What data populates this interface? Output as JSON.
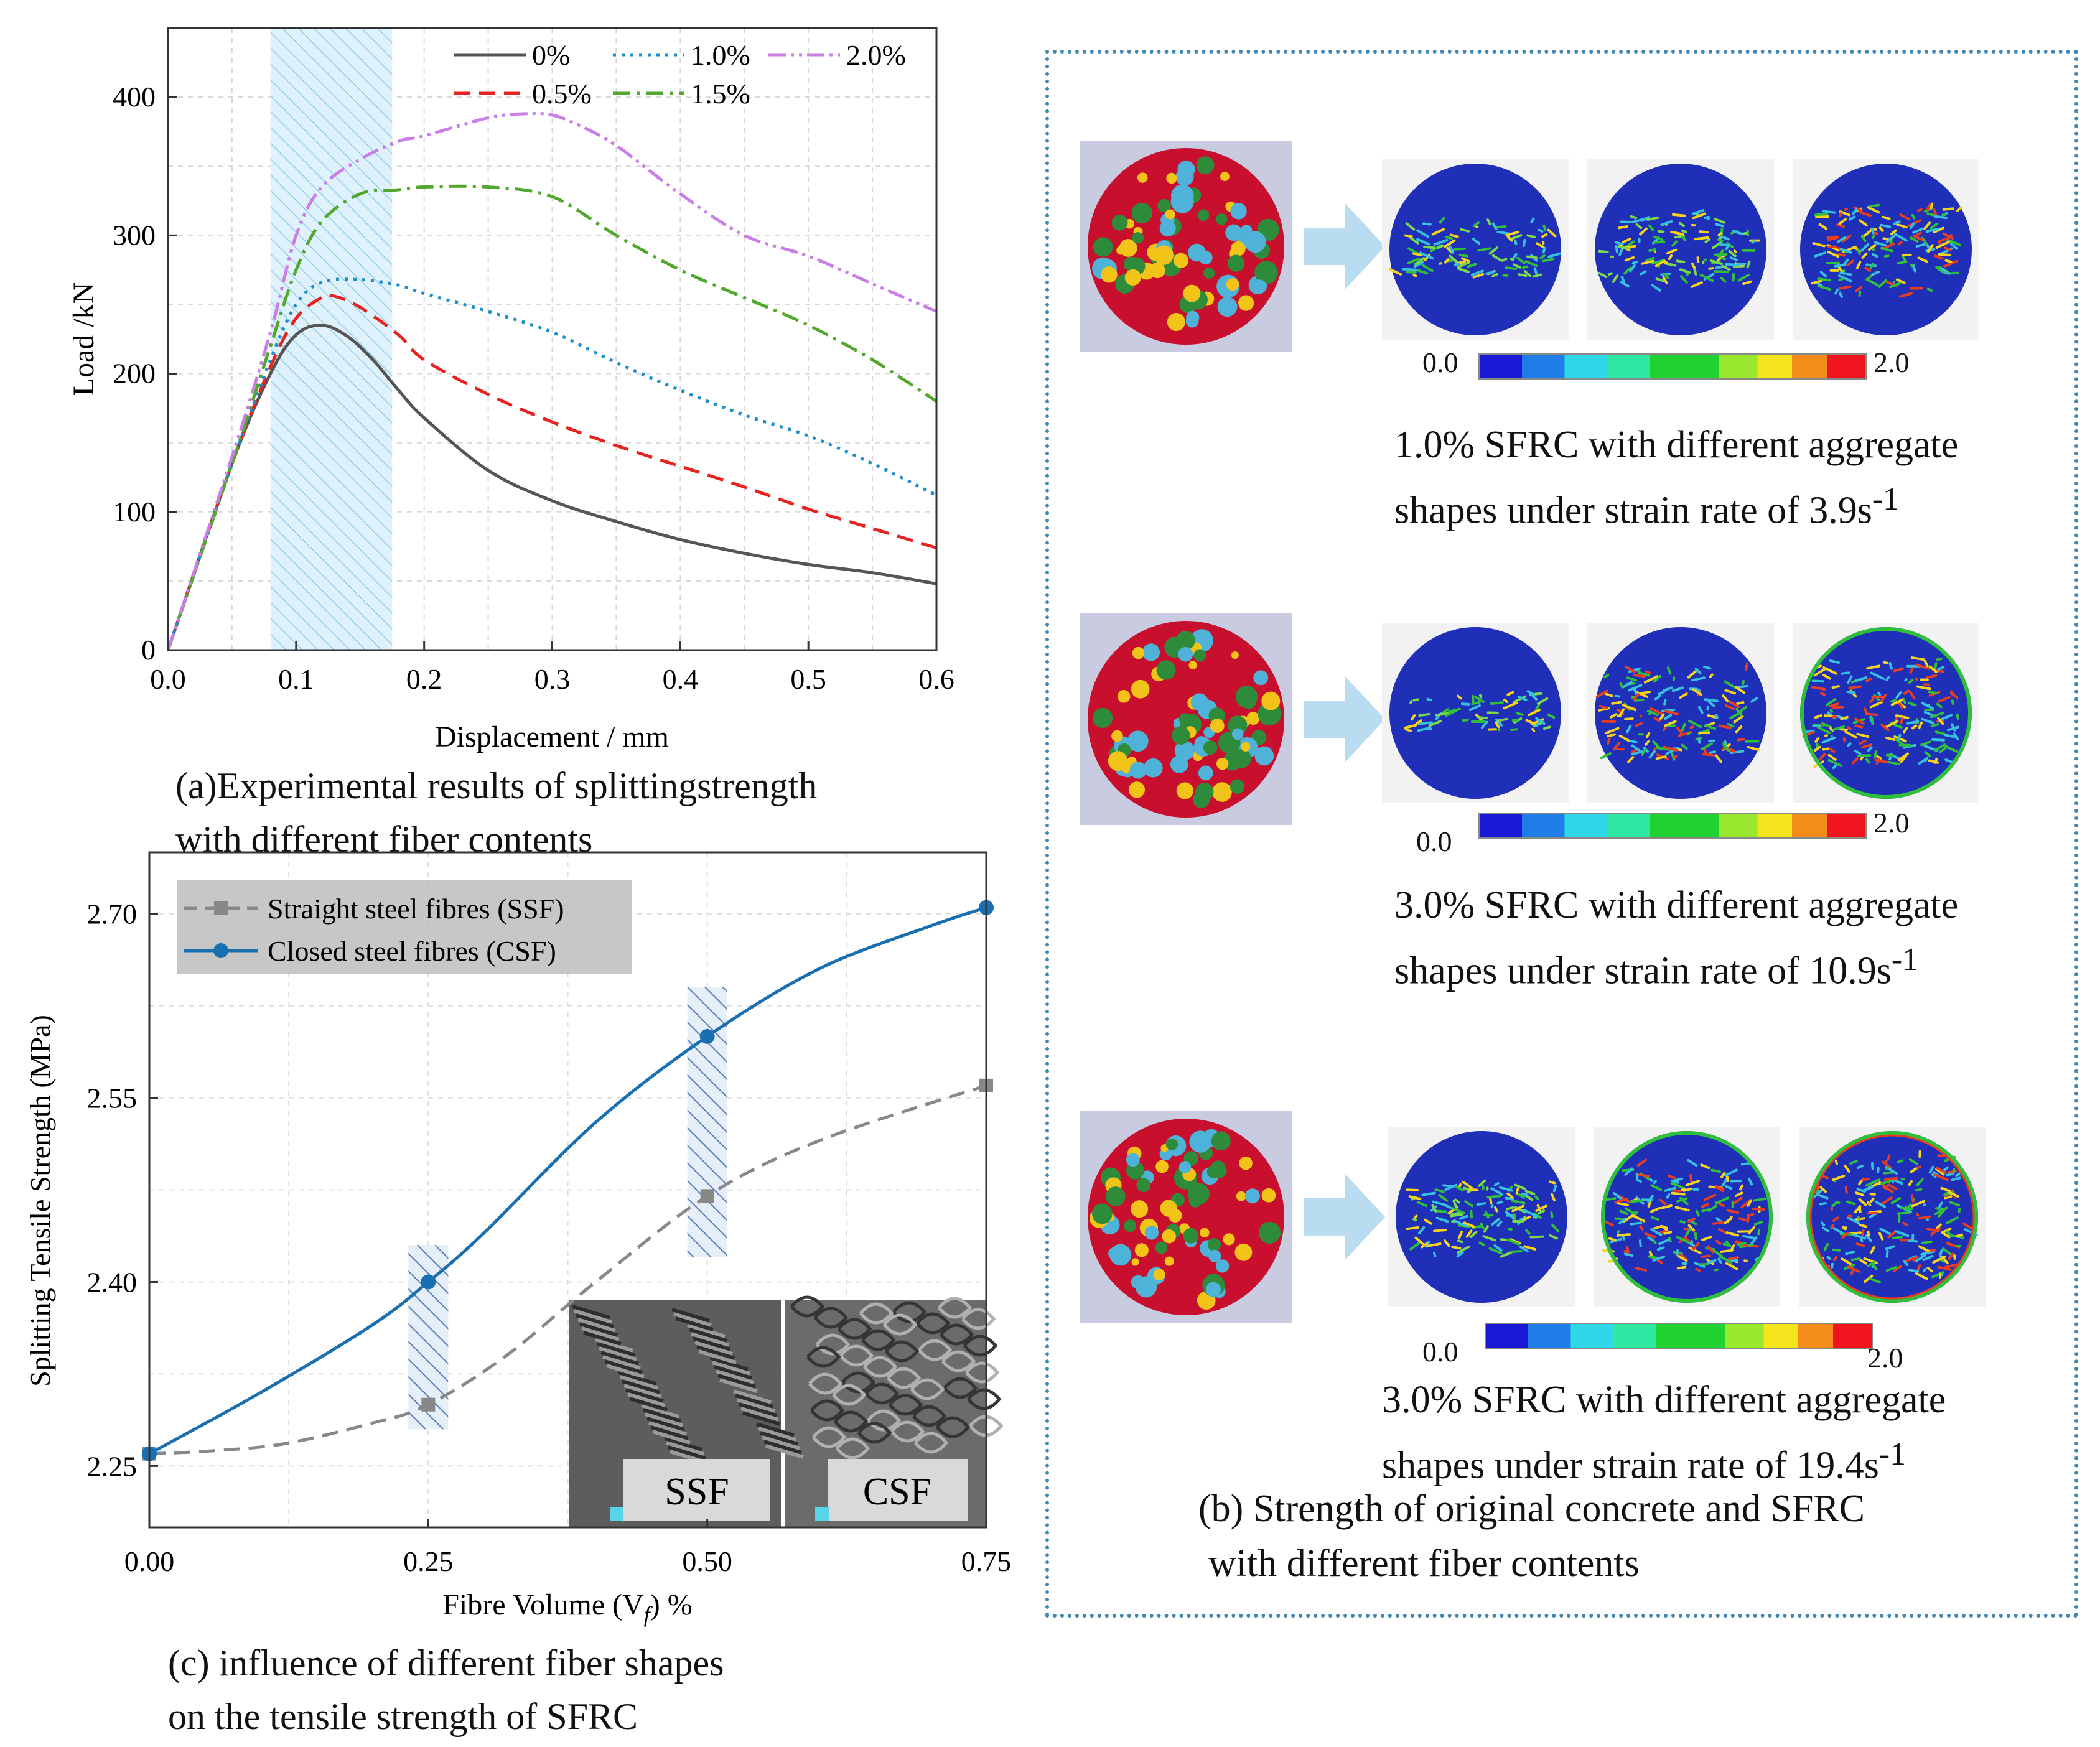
{
  "panel_a": {
    "caption": [
      "(a)Experimental results of splittingstrength",
      "with different fiber contents"
    ],
    "chart_data": {
      "type": "line",
      "xlabel": "Displacement / mm",
      "ylabel": "Load /kN",
      "xlim": [
        0,
        0.6
      ],
      "ylim": [
        0,
        450
      ],
      "xticks": [
        "0.0",
        "0.1",
        "0.2",
        "0.3",
        "0.4",
        "0.5",
        "0.6"
      ],
      "yticks": [
        "0",
        "100",
        "200",
        "300",
        "400"
      ],
      "shaded_region": [
        0.08,
        0.175
      ],
      "legend_position": "top-right",
      "series": [
        {
          "name": "0%",
          "color": "#555555",
          "dash": "solid",
          "x": [
            0,
            0.05,
            0.08,
            0.1,
            0.12,
            0.14,
            0.16,
            0.18,
            0.2,
            0.25,
            0.3,
            0.35,
            0.4,
            0.45,
            0.5,
            0.55,
            0.6
          ],
          "y": [
            0,
            135,
            200,
            228,
            235,
            227,
            210,
            188,
            168,
            130,
            108,
            93,
            80,
            70,
            62,
            56,
            48
          ]
        },
        {
          "name": "0.5%",
          "color": "#e8231f",
          "dash": "dash",
          "x": [
            0,
            0.05,
            0.08,
            0.1,
            0.12,
            0.13,
            0.15,
            0.18,
            0.2,
            0.25,
            0.3,
            0.35,
            0.4,
            0.45,
            0.5,
            0.55,
            0.6
          ],
          "y": [
            0,
            135,
            205,
            240,
            255,
            256,
            248,
            228,
            210,
            185,
            165,
            148,
            133,
            118,
            102,
            88,
            74
          ]
        },
        {
          "name": "1.0%",
          "color": "#1e8fc9",
          "dash": "dot",
          "x": [
            0,
            0.05,
            0.08,
            0.1,
            0.12,
            0.15,
            0.18,
            0.2,
            0.25,
            0.3,
            0.35,
            0.4,
            0.45,
            0.5,
            0.55,
            0.6
          ],
          "y": [
            0,
            135,
            210,
            250,
            266,
            268,
            264,
            258,
            245,
            230,
            208,
            188,
            170,
            155,
            135,
            112
          ]
        },
        {
          "name": "1.5%",
          "color": "#52a82c",
          "dash": "dashdot",
          "x": [
            0,
            0.05,
            0.08,
            0.1,
            0.12,
            0.15,
            0.18,
            0.2,
            0.25,
            0.3,
            0.35,
            0.4,
            0.45,
            0.5,
            0.55,
            0.6
          ],
          "y": [
            0,
            135,
            220,
            275,
            310,
            330,
            333,
            335,
            335,
            328,
            300,
            275,
            255,
            235,
            210,
            180
          ]
        },
        {
          "name": "2.0%",
          "color": "#c97fe6",
          "dash": "dashdotdot",
          "x": [
            0,
            0.05,
            0.08,
            0.1,
            0.12,
            0.15,
            0.18,
            0.2,
            0.25,
            0.28,
            0.3,
            0.32,
            0.35,
            0.4,
            0.45,
            0.5,
            0.55,
            0.6
          ],
          "y": [
            0,
            140,
            230,
            300,
            335,
            355,
            368,
            372,
            385,
            388,
            387,
            380,
            365,
            330,
            300,
            285,
            265,
            245
          ]
        }
      ]
    }
  },
  "panel_b": {
    "caption": [
      "(b) Strength of original concrete and SFRC",
      "with different fiber contents"
    ],
    "colorbar_min": "0.0",
    "colorbar_max": "2.0",
    "rows": [
      {
        "caption_line1": "1.0% SFRC with different aggregate",
        "caption_line2_prefix": "shapes under strain rate of 3.9s",
        "superscript": "-1"
      },
      {
        "caption_line1": "3.0% SFRC with different aggregate",
        "caption_line2_prefix": "shapes under strain rate of 10.9s",
        "superscript": "-1"
      },
      {
        "caption_line1": "3.0% SFRC with different aggregate",
        "caption_line2_prefix": "shapes under strain rate of 19.4s",
        "superscript": "-1"
      }
    ]
  },
  "panel_c": {
    "caption": [
      "(c) influence of different fiber shapes",
      " on the tensile strength of SFRC"
    ],
    "xlabel_prefix": "Fibre Volume (V",
    "xlabel_sub": "f",
    "xlabel_suffix": ") %",
    "inset_labels": [
      "SSF",
      "CSF"
    ],
    "chart_data": {
      "type": "line",
      "ylabel": "Splitting Tensile Strength (MPa)",
      "xlim": [
        0,
        0.75
      ],
      "ylim": [
        2.2,
        2.75
      ],
      "xticks": [
        "0.00",
        "0.25",
        "0.50",
        "0.75"
      ],
      "yticks": [
        "2.25",
        "2.40",
        "2.55",
        "2.70"
      ],
      "legend_position": "top-left",
      "series": [
        {
          "name": "Straight steel fibres (SSF)",
          "color": "#888888",
          "marker": "square",
          "dash": "dash",
          "x": [
            0,
            0.25,
            0.5,
            0.75
          ],
          "y": [
            2.26,
            2.3,
            2.47,
            2.56
          ]
        },
        {
          "name": "Closed steel fibres  (CSF)",
          "color": "#1a6fb0",
          "marker": "circle",
          "dash": "solid",
          "x": [
            0,
            0.25,
            0.5,
            0.75
          ],
          "y": [
            2.26,
            2.4,
            2.6,
            2.705
          ]
        }
      ]
    }
  }
}
